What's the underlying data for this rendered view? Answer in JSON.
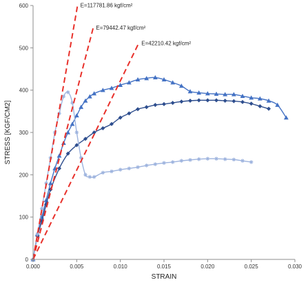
{
  "chart_data": {
    "type": "line",
    "xlabel": "STRAIN",
    "ylabel": "STRESS [KGF/CM2]",
    "xlim": [
      0,
      0.03
    ],
    "ylim": [
      0,
      600
    ],
    "x_ticks": [
      0,
      0.005,
      0.01,
      0.015,
      0.02,
      0.025,
      0.03
    ],
    "x_tick_labels": [
      "0.000",
      "0.005",
      "0.010",
      "0.015",
      "0.020",
      "0.025",
      "0.030"
    ],
    "y_ticks": [
      0,
      100,
      200,
      300,
      400,
      500,
      600
    ],
    "y_tick_labels": [
      "0",
      "100",
      "200",
      "300",
      "400",
      "500",
      "600"
    ],
    "grid": false,
    "series": [
      {
        "marker": "triangle",
        "color": "#4472C4",
        "x": [
          0,
          0.0005,
          0.001,
          0.0015,
          0.002,
          0.0025,
          0.003,
          0.0035,
          0.004,
          0.0045,
          0.005,
          0.0055,
          0.006,
          0.0065,
          0.007,
          0.008,
          0.009,
          0.01,
          0.011,
          0.012,
          0.013,
          0.014,
          0.015,
          0.016,
          0.017,
          0.018,
          0.019,
          0.02,
          0.021,
          0.022,
          0.023,
          0.024,
          0.025,
          0.026,
          0.027,
          0.028,
          0.029
        ],
        "y": [
          0,
          60,
          100,
          140,
          180,
          215,
          245,
          275,
          300,
          320,
          340,
          360,
          375,
          385,
          392,
          400,
          405,
          412,
          418,
          425,
          428,
          430,
          425,
          418,
          410,
          397,
          394,
          392,
          391,
          390,
          390,
          386,
          382,
          380,
          375,
          365,
          335
        ]
      },
      {
        "marker": "diamond",
        "color": "#2E4E8E",
        "x": [
          0,
          0.0005,
          0.001,
          0.0015,
          0.002,
          0.003,
          0.004,
          0.005,
          0.006,
          0.007,
          0.008,
          0.009,
          0.01,
          0.011,
          0.012,
          0.013,
          0.014,
          0.015,
          0.016,
          0.017,
          0.018,
          0.019,
          0.02,
          0.021,
          0.022,
          0.023,
          0.024,
          0.025,
          0.026,
          0.027
        ],
        "y": [
          0,
          55,
          90,
          130,
          165,
          215,
          250,
          270,
          285,
          300,
          310,
          320,
          335,
          345,
          355,
          360,
          365,
          367,
          370,
          373,
          375,
          376,
          376,
          376,
          375,
          374,
          372,
          368,
          362,
          356
        ]
      },
      {
        "marker": "star",
        "color": "#9DB3DE",
        "x": [
          0,
          0.0005,
          0.001,
          0.0015,
          0.002,
          0.0025,
          0.003,
          0.0035,
          0.004,
          0.0045,
          0.005,
          0.0055,
          0.006,
          0.0065,
          0.007,
          0.008,
          0.009,
          0.01,
          0.011,
          0.012,
          0.013,
          0.014,
          0.015,
          0.016,
          0.017,
          0.018,
          0.019,
          0.02,
          0.021,
          0.022,
          0.023,
          0.024,
          0.025
        ],
        "y": [
          0,
          60,
          120,
          180,
          240,
          300,
          345,
          385,
          395,
          370,
          300,
          240,
          200,
          195,
          195,
          205,
          208,
          212,
          215,
          218,
          222,
          225,
          228,
          230,
          233,
          235,
          237,
          238,
          238,
          237,
          236,
          233,
          230
        ]
      }
    ],
    "modulus_lines": [
      {
        "label": "E=117781.86 kgf/cm²",
        "slope": 117781.86,
        "x_end": 0.0051,
        "color": "#E8302A"
      },
      {
        "label": "E=79442.47 kgf/cm²",
        "slope": 79442.47,
        "x_end": 0.0069,
        "color": "#E8302A"
      },
      {
        "label": "E=42210.42 kgf/cm²",
        "slope": 42210.42,
        "x_end": 0.0121,
        "color": "#E8302A"
      }
    ]
  }
}
